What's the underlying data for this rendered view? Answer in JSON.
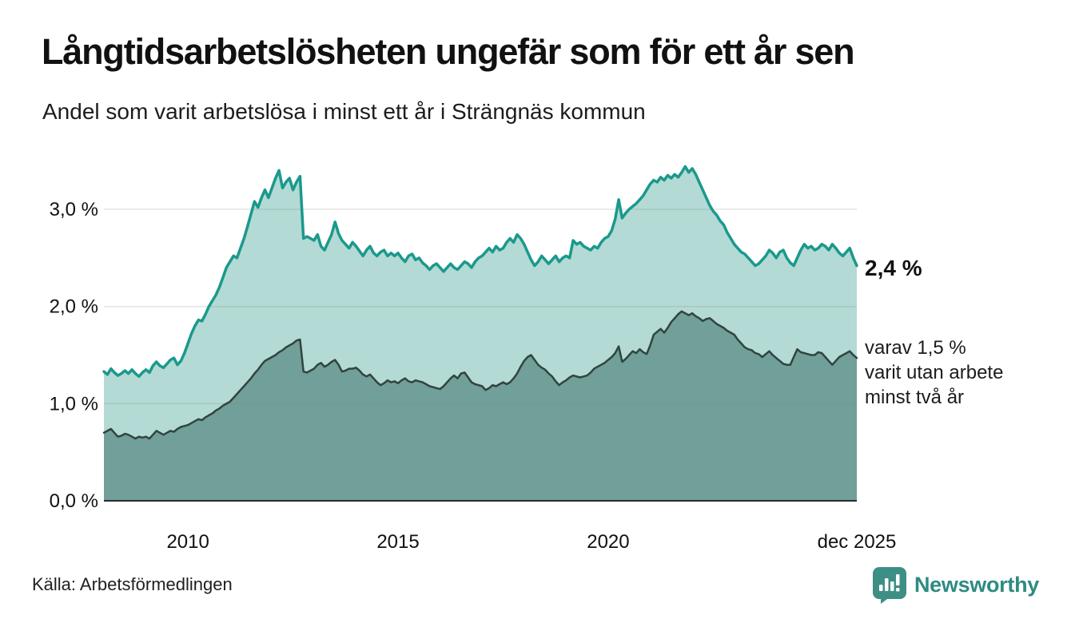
{
  "title": "Långtidsarbetslösheten ungefär som för ett år sen",
  "subtitle": "Andel som varit arbetslösa i minst ett år i Strängnäs kommun",
  "annotations": {
    "latest_total": "2,4 %",
    "secondary": "varav 1,5 %\nvarit utan arbete\nminst två år"
  },
  "source": "Källa: Arbetsförmedlingen",
  "logo": {
    "text": "Newsworthy",
    "color": "#2e8b82",
    "icon": "speech-bubble-bar-chart"
  },
  "colors": {
    "background": "#ffffff",
    "title_text": "#111111",
    "body_text": "#1c1c1c",
    "axis_line": "#2b2b2b",
    "gridline": "rgba(130,130,130,0.22)",
    "series1_line": "#1a998c",
    "series1_fill": "#b3dad4",
    "series2_line": "#31443e",
    "series2_fill": "#719f99"
  },
  "chart_data": {
    "type": "area",
    "title": "Långtidsarbetslösheten ungefär som för ett år sen",
    "subtitle": "Andel som varit arbetslösa i minst ett år i Strängnäs kommun",
    "unit": "%",
    "frequency": "monthly",
    "x_start": "2008-01",
    "x_end": "2025-12",
    "ylim": [
      0,
      3.6
    ],
    "grid": "horizontal",
    "x_ticks": [
      {
        "label": "2010",
        "month_index": 24
      },
      {
        "label": "2015",
        "month_index": 84
      },
      {
        "label": "2020",
        "month_index": 144
      },
      {
        "label": "dec 2025",
        "month_index": 215
      }
    ],
    "y_ticks": [
      {
        "label": "0,0 %",
        "value": 0
      },
      {
        "label": "1,0 %",
        "value": 1
      },
      {
        "label": "2,0 %",
        "value": 2
      },
      {
        "label": "3,0 %",
        "value": 3
      }
    ],
    "series": [
      {
        "name": "Andel som varit arbetslösa i minst ett år",
        "last_value_label": "2,4 %",
        "line_color": "#1a998c",
        "fill_color": "#b3dad4",
        "values": [
          1.33,
          1.3,
          1.36,
          1.32,
          1.29,
          1.31,
          1.34,
          1.31,
          1.35,
          1.31,
          1.28,
          1.32,
          1.35,
          1.32,
          1.39,
          1.43,
          1.39,
          1.37,
          1.41,
          1.45,
          1.47,
          1.4,
          1.44,
          1.52,
          1.62,
          1.72,
          1.8,
          1.86,
          1.85,
          1.92,
          2.0,
          2.06,
          2.12,
          2.2,
          2.3,
          2.4,
          2.46,
          2.52,
          2.5,
          2.6,
          2.7,
          2.82,
          2.95,
          3.08,
          3.02,
          3.12,
          3.2,
          3.12,
          3.22,
          3.32,
          3.4,
          3.22,
          3.28,
          3.32,
          3.2,
          3.28,
          3.34,
          2.7,
          2.72,
          2.7,
          2.68,
          2.74,
          2.62,
          2.58,
          2.66,
          2.74,
          2.87,
          2.75,
          2.68,
          2.64,
          2.6,
          2.66,
          2.62,
          2.57,
          2.52,
          2.58,
          2.62,
          2.55,
          2.52,
          2.56,
          2.58,
          2.52,
          2.55,
          2.52,
          2.55,
          2.5,
          2.46,
          2.52,
          2.54,
          2.48,
          2.5,
          2.45,
          2.42,
          2.38,
          2.42,
          2.44,
          2.4,
          2.36,
          2.4,
          2.44,
          2.4,
          2.38,
          2.42,
          2.46,
          2.44,
          2.4,
          2.46,
          2.5,
          2.52,
          2.56,
          2.6,
          2.56,
          2.62,
          2.58,
          2.6,
          2.66,
          2.7,
          2.66,
          2.74,
          2.7,
          2.64,
          2.56,
          2.48,
          2.42,
          2.46,
          2.52,
          2.48,
          2.44,
          2.48,
          2.52,
          2.46,
          2.5,
          2.52,
          2.5,
          2.68,
          2.64,
          2.66,
          2.62,
          2.6,
          2.58,
          2.62,
          2.6,
          2.66,
          2.7,
          2.72,
          2.78,
          2.9,
          3.1,
          2.91,
          2.96,
          3.0,
          3.03,
          3.06,
          3.1,
          3.14,
          3.2,
          3.26,
          3.3,
          3.28,
          3.33,
          3.3,
          3.35,
          3.32,
          3.36,
          3.33,
          3.38,
          3.44,
          3.38,
          3.42,
          3.36,
          3.28,
          3.2,
          3.12,
          3.04,
          2.98,
          2.94,
          2.88,
          2.84,
          2.76,
          2.7,
          2.64,
          2.6,
          2.56,
          2.54,
          2.5,
          2.46,
          2.42,
          2.44,
          2.48,
          2.52,
          2.58,
          2.55,
          2.5,
          2.56,
          2.58,
          2.5,
          2.45,
          2.42,
          2.5,
          2.58,
          2.64,
          2.6,
          2.62,
          2.58,
          2.6,
          2.64,
          2.62,
          2.58,
          2.64,
          2.6,
          2.55,
          2.52,
          2.56,
          2.6,
          2.5,
          2.42
        ]
      },
      {
        "name": "varav utan arbete minst två år",
        "last_value_label": "1,5 %",
        "line_color": "#31443e",
        "fill_color": "#719f99",
        "values": [
          0.7,
          0.72,
          0.74,
          0.7,
          0.66,
          0.67,
          0.69,
          0.68,
          0.66,
          0.64,
          0.66,
          0.65,
          0.66,
          0.64,
          0.68,
          0.72,
          0.7,
          0.68,
          0.7,
          0.72,
          0.71,
          0.74,
          0.76,
          0.77,
          0.78,
          0.8,
          0.82,
          0.84,
          0.83,
          0.86,
          0.88,
          0.9,
          0.93,
          0.95,
          0.98,
          1.0,
          1.02,
          1.06,
          1.1,
          1.14,
          1.18,
          1.22,
          1.26,
          1.31,
          1.35,
          1.4,
          1.44,
          1.46,
          1.48,
          1.5,
          1.53,
          1.55,
          1.58,
          1.6,
          1.62,
          1.65,
          1.66,
          1.33,
          1.32,
          1.34,
          1.36,
          1.4,
          1.42,
          1.38,
          1.4,
          1.43,
          1.45,
          1.4,
          1.33,
          1.34,
          1.36,
          1.36,
          1.37,
          1.34,
          1.3,
          1.28,
          1.3,
          1.26,
          1.22,
          1.19,
          1.21,
          1.24,
          1.22,
          1.23,
          1.21,
          1.24,
          1.26,
          1.23,
          1.22,
          1.24,
          1.23,
          1.22,
          1.2,
          1.18,
          1.17,
          1.16,
          1.15,
          1.18,
          1.22,
          1.26,
          1.29,
          1.26,
          1.31,
          1.32,
          1.27,
          1.22,
          1.2,
          1.19,
          1.18,
          1.14,
          1.16,
          1.19,
          1.18,
          1.2,
          1.22,
          1.2,
          1.22,
          1.26,
          1.31,
          1.38,
          1.44,
          1.48,
          1.5,
          1.45,
          1.4,
          1.37,
          1.35,
          1.31,
          1.28,
          1.23,
          1.19,
          1.22,
          1.24,
          1.27,
          1.29,
          1.28,
          1.27,
          1.28,
          1.29,
          1.32,
          1.36,
          1.38,
          1.4,
          1.42,
          1.45,
          1.48,
          1.52,
          1.59,
          1.43,
          1.46,
          1.5,
          1.54,
          1.52,
          1.56,
          1.53,
          1.51,
          1.6,
          1.71,
          1.74,
          1.77,
          1.73,
          1.78,
          1.84,
          1.88,
          1.92,
          1.95,
          1.93,
          1.91,
          1.93,
          1.9,
          1.88,
          1.85,
          1.87,
          1.88,
          1.85,
          1.82,
          1.8,
          1.78,
          1.75,
          1.73,
          1.71,
          1.66,
          1.62,
          1.58,
          1.56,
          1.55,
          1.52,
          1.51,
          1.48,
          1.51,
          1.54,
          1.5,
          1.47,
          1.44,
          1.41,
          1.4,
          1.4,
          1.48,
          1.56,
          1.53,
          1.52,
          1.51,
          1.5,
          1.5,
          1.53,
          1.52,
          1.48,
          1.44,
          1.4,
          1.44,
          1.48,
          1.5,
          1.52,
          1.54,
          1.5,
          1.47
        ]
      }
    ]
  }
}
